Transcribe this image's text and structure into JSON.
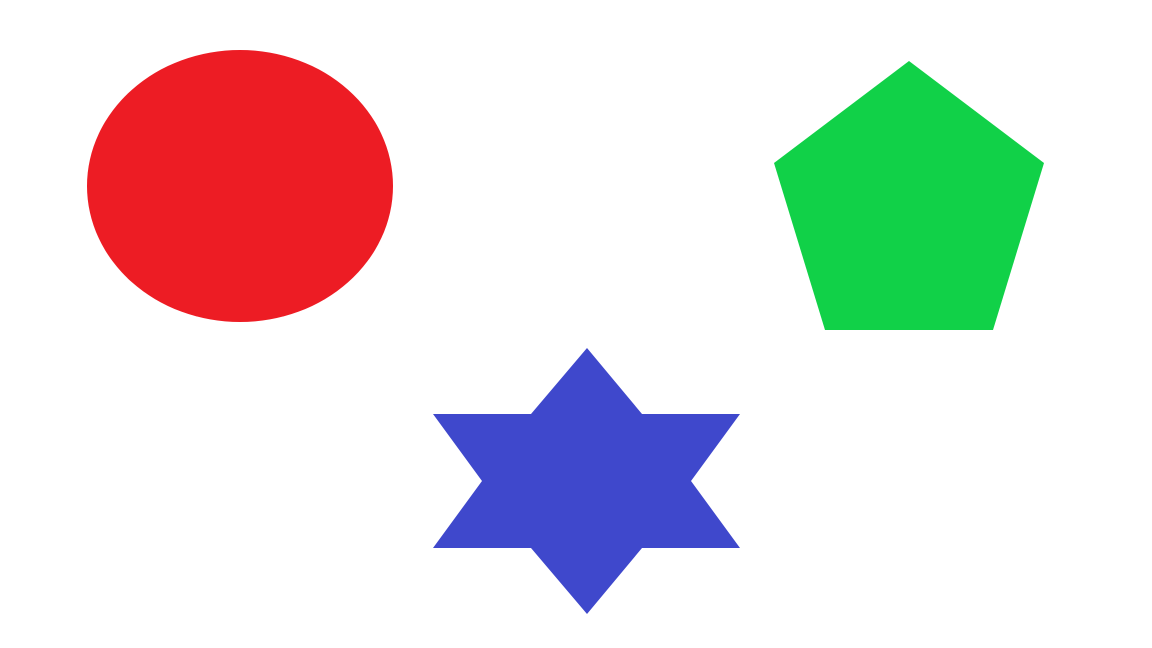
{
  "background": "#ffffff",
  "shapes": [
    {
      "name": "red-ellipse",
      "kind": "ellipse",
      "color": "#ed1c24"
    },
    {
      "name": "green-pentagon",
      "kind": "pentagon",
      "color": "#11d148"
    },
    {
      "name": "blue-hexagram",
      "kind": "hexagram",
      "color": "#3f48cc"
    }
  ]
}
